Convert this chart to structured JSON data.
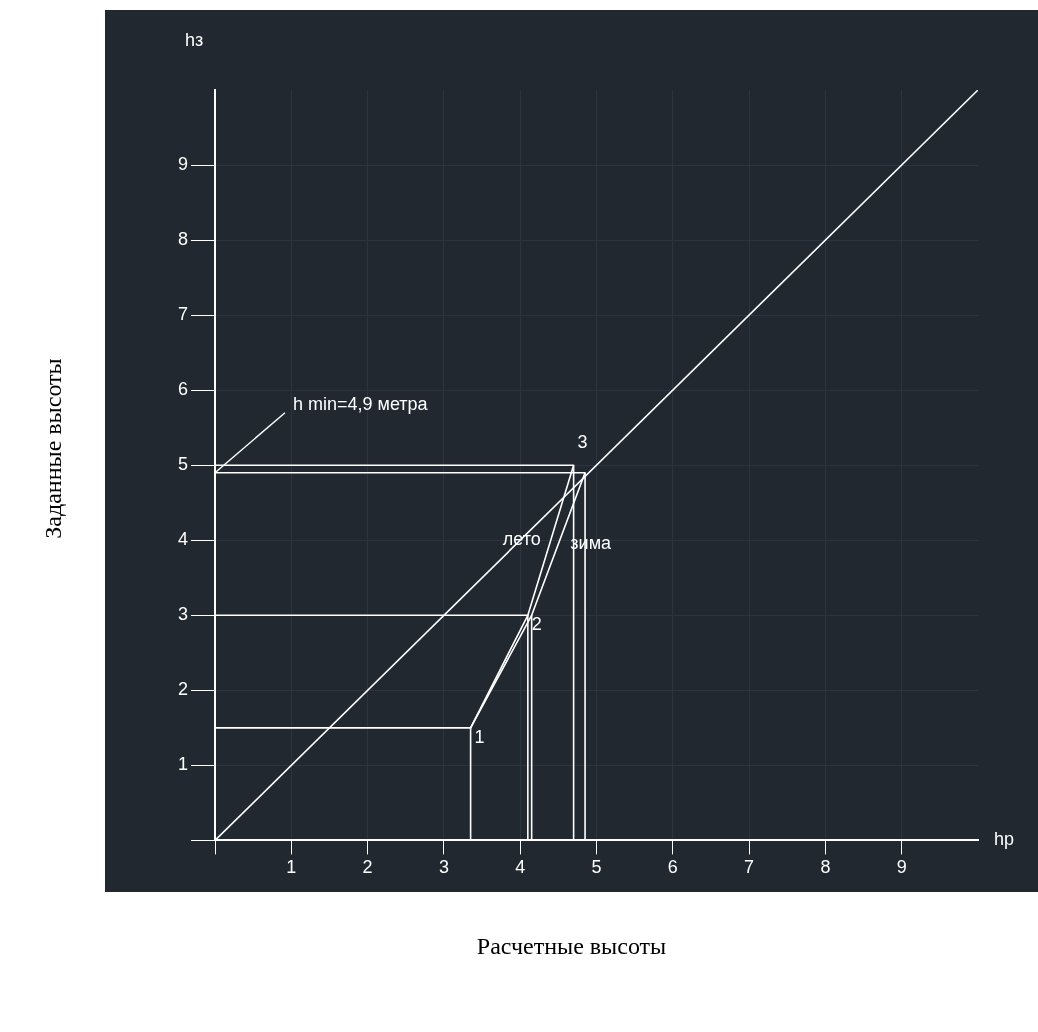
{
  "chart_data": {
    "type": "line",
    "xlabel": "Расчетные высоты",
    "ylabel": "Заданные высоты",
    "xlim": [
      0,
      10
    ],
    "ylim": [
      0,
      10
    ],
    "xticks": [
      {
        "value": 0,
        "label": null
      },
      1,
      2,
      3,
      4,
      5,
      6,
      7,
      8,
      9
    ],
    "yticks": [
      {
        "value": 0,
        "label": null
      },
      1,
      2,
      3,
      4,
      5,
      6,
      7,
      8,
      9
    ],
    "grid": true,
    "legend": false,
    "marker": "none",
    "line_style": "solid",
    "series": [
      {
        "x": [
          0,
          10
        ],
        "values": [
          0,
          10
        ],
        "color": "#ffffff"
      },
      {
        "name": "лето",
        "x": [
          3.35,
          4.1,
          4.7
        ],
        "values": [
          1.5,
          3,
          5
        ],
        "color": "#ffffff"
      },
      {
        "name": "зима",
        "x": [
          3.35,
          4.15,
          4.85
        ],
        "values": [
          1.5,
          3,
          4.9
        ],
        "color": "#ffffff"
      },
      {
        "x": [
          0,
          3.35,
          3.35
        ],
        "values": [
          1.5,
          1.5,
          0
        ],
        "color": "#ffffff"
      },
      {
        "x": [
          0,
          4.1,
          4.1
        ],
        "values": [
          3,
          3,
          0
        ],
        "color": "#ffffff"
      },
      {
        "x": [
          4.15,
          4.15
        ],
        "values": [
          3,
          0
        ],
        "color": "#ffffff"
      },
      {
        "x": [
          0,
          4.7,
          4.7
        ],
        "values": [
          5,
          5,
          0
        ],
        "color": "#ffffff"
      },
      {
        "x": [
          0,
          4.85,
          4.85
        ],
        "values": [
          4.9,
          4.9,
          0
        ],
        "color": "#ffffff"
      }
    ],
    "annotations": [
      "hз",
      "hр",
      {
        "text": "h min=4,9 метра",
        "x": 0,
        "y": 4.9
      },
      {
        "text": "1",
        "x": 3.35,
        "y": 1.5
      },
      {
        "text": "2",
        "x": 4.1,
        "y": 3
      },
      {
        "text": "3",
        "x": 4.7,
        "y": 5
      }
    ]
  }
}
